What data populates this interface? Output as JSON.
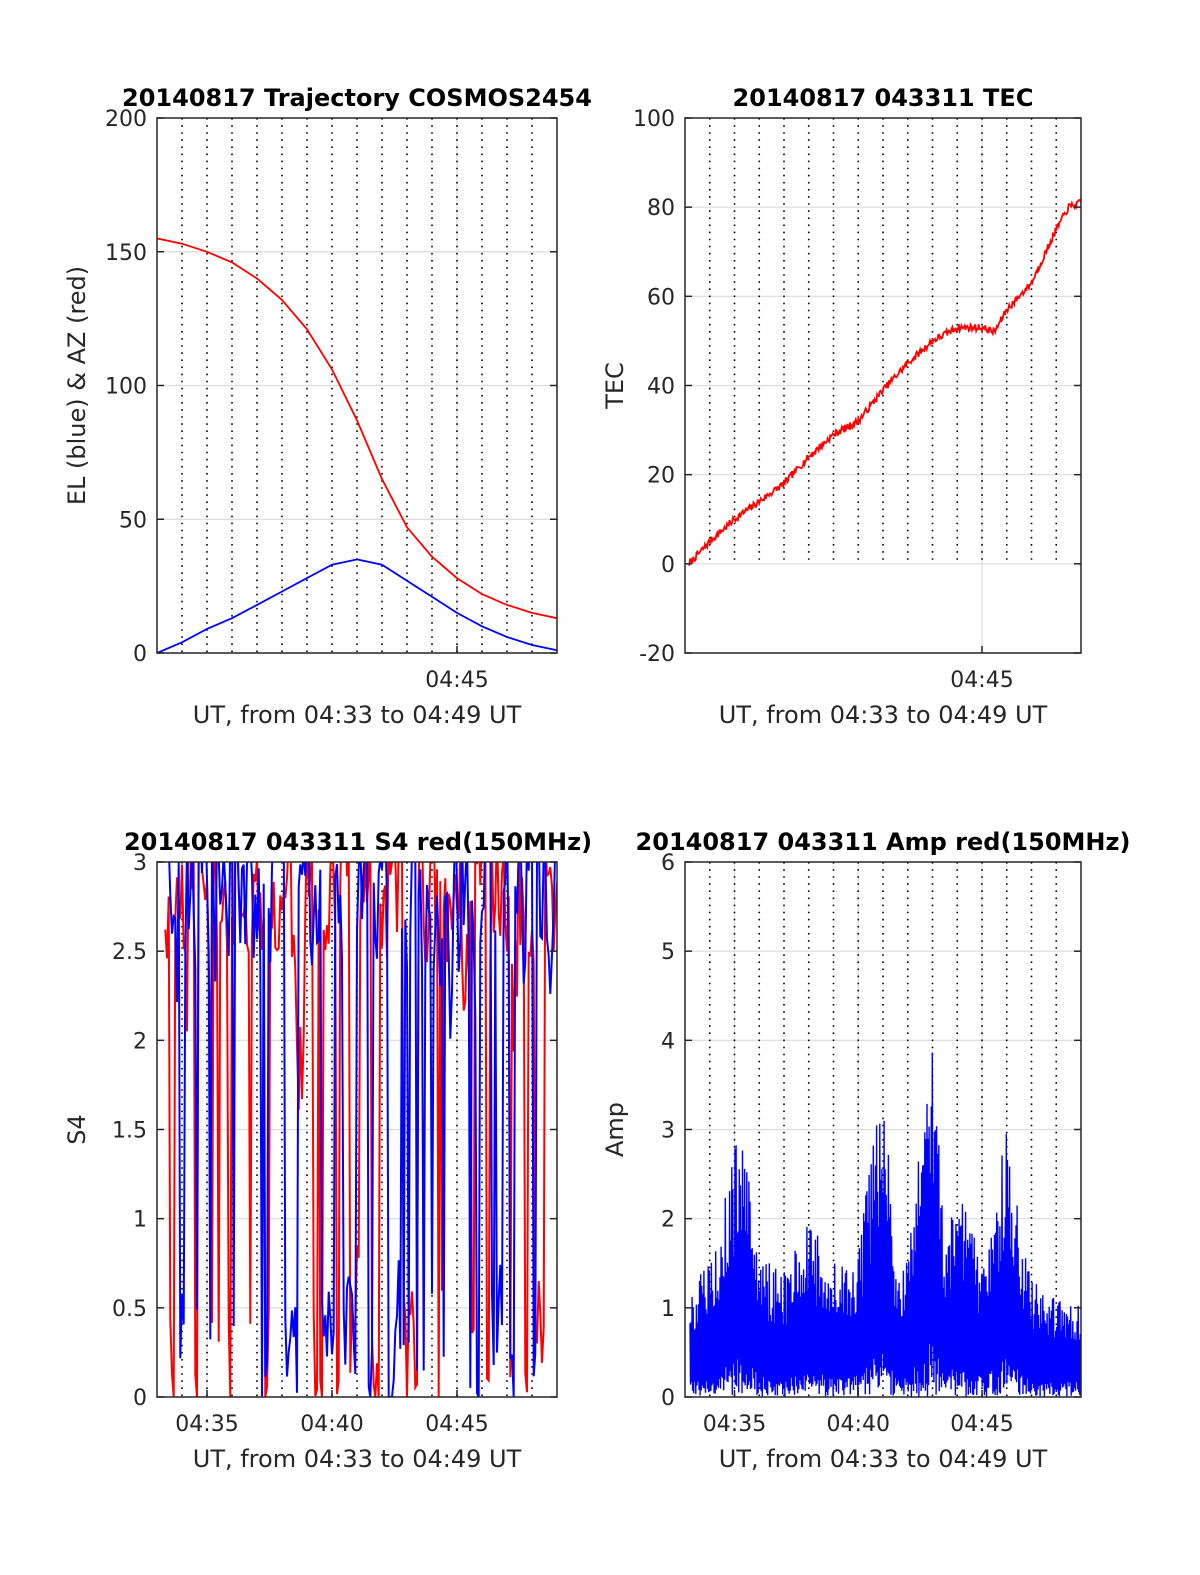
{
  "figure": {
    "colors": {
      "red": "#ff0000",
      "blue": "#0000ff",
      "axis": "#262626",
      "grid": "#dcdcdc"
    }
  },
  "chart_data": [
    {
      "id": "trajectory",
      "type": "line",
      "title": "20140817 Trajectory COSMOS2454",
      "xlabel": "UT, from 04:33 to 04:49 UT",
      "ylabel": "EL (blue) & AZ (red)",
      "xlim": [
        "04:33",
        "04:49"
      ],
      "ylim": [
        0,
        200
      ],
      "yticks": [
        0,
        50,
        100,
        150,
        200
      ],
      "xticks": [
        {
          "t": "04:45",
          "label": "04:45"
        }
      ],
      "dotted_minutes": [
        "04:34",
        "04:35",
        "04:36",
        "04:37",
        "04:38",
        "04:39",
        "04:40",
        "04:41",
        "04:42",
        "04:43",
        "04:44",
        "04:45",
        "04:46",
        "04:47",
        "04:48"
      ],
      "grid": true,
      "series": [
        {
          "color": "red",
          "style": "line",
          "points": [
            [
              "04:33",
              155
            ],
            [
              "04:34",
              153
            ],
            [
              "04:35",
              150
            ],
            [
              "04:36",
              146
            ],
            [
              "04:37",
              140
            ],
            [
              "04:38",
              132
            ],
            [
              "04:39",
              121
            ],
            [
              "04:40",
              106
            ],
            [
              "04:41",
              87
            ],
            [
              "04:42",
              65
            ],
            [
              "04:43",
              47
            ],
            [
              "04:44",
              36
            ],
            [
              "04:45",
              28
            ],
            [
              "04:46",
              22
            ],
            [
              "04:47",
              18
            ],
            [
              "04:48",
              15
            ],
            [
              "04:49",
              13
            ]
          ]
        },
        {
          "color": "blue",
          "style": "line",
          "points": [
            [
              "04:33",
              0
            ],
            [
              "04:34",
              4
            ],
            [
              "04:35",
              9
            ],
            [
              "04:36",
              13
            ],
            [
              "04:37",
              18
            ],
            [
              "04:38",
              23
            ],
            [
              "04:39",
              28
            ],
            [
              "04:40",
              33
            ],
            [
              "04:41",
              35
            ],
            [
              "04:42",
              33
            ],
            [
              "04:43",
              27
            ],
            [
              "04:44",
              21
            ],
            [
              "04:45",
              15
            ],
            [
              "04:46",
              10
            ],
            [
              "04:47",
              6
            ],
            [
              "04:48",
              3
            ],
            [
              "04:49",
              1
            ]
          ]
        }
      ]
    },
    {
      "id": "tec",
      "type": "line",
      "title": "20140817 043311 TEC",
      "xlabel": "UT, from 04:33 to 04:49 UT",
      "ylabel": "TEC",
      "xlim": [
        "04:33",
        "04:49"
      ],
      "ylim": [
        -20,
        100
      ],
      "yticks": [
        -20,
        0,
        20,
        40,
        60,
        80,
        100
      ],
      "xticks": [
        {
          "t": "04:45",
          "label": "04:45"
        }
      ],
      "dotted_minutes": [
        "04:34",
        "04:35",
        "04:36",
        "04:37",
        "04:38",
        "04:39",
        "04:40",
        "04:41",
        "04:42",
        "04:43",
        "04:44",
        "04:45",
        "04:46",
        "04:47",
        "04:48"
      ],
      "dotted_clip_below": 0,
      "grid": true,
      "series": [
        {
          "color": "red",
          "style": "line",
          "points": [
            [
              "04:33:10",
              0
            ],
            [
              "04:33:30",
              2
            ],
            [
              "04:34:00",
              5
            ],
            [
              "04:35:00",
              10
            ],
            [
              "04:36:00",
              14
            ],
            [
              "04:37:00",
              18
            ],
            [
              "04:38:00",
              24
            ],
            [
              "04:39:00",
              29
            ],
            [
              "04:40:00",
              32
            ],
            [
              "04:41:00",
              39
            ],
            [
              "04:42:00",
              45
            ],
            [
              "04:43:00",
              50
            ],
            [
              "04:44:00",
              53
            ],
            [
              "04:45:00",
              53
            ],
            [
              "04:45:30",
              52
            ],
            [
              "04:46:00",
              57
            ],
            [
              "04:47:00",
              63
            ],
            [
              "04:48:00",
              75
            ],
            [
              "04:48:30",
              80
            ],
            [
              "04:49:00",
              81
            ]
          ]
        }
      ]
    },
    {
      "id": "s4",
      "type": "line",
      "title": "20140817 043311 S4 red(150MHz)",
      "xlabel": "UT, from 04:33 to 04:49 UT",
      "ylabel": "S4",
      "xlim": [
        "04:33",
        "04:49"
      ],
      "ylim": [
        0,
        3
      ],
      "yticks": [
        0,
        0.5,
        1,
        1.5,
        2,
        2.5,
        3
      ],
      "ytick_labels": [
        "0",
        "0.5",
        "1",
        "1.5",
        "2",
        "2.5",
        "3"
      ],
      "xticks": [
        {
          "t": "04:35",
          "label": "04:35"
        },
        {
          "t": "04:40",
          "label": "04:40"
        },
        {
          "t": "04:45",
          "label": "04:45"
        }
      ],
      "dotted_minutes": [
        "04:34",
        "04:35",
        "04:36",
        "04:37",
        "04:38",
        "04:39",
        "04:40",
        "04:41",
        "04:42",
        "04:43",
        "04:44",
        "04:45",
        "04:46",
        "04:47",
        "04:48"
      ],
      "grid": true,
      "series": [
        {
          "color": "red",
          "style": "noisy",
          "level_range": [
            0,
            3
          ],
          "seed": 11
        },
        {
          "color": "blue",
          "style": "noisy",
          "level_range": [
            0,
            3
          ],
          "seed": 29
        }
      ]
    },
    {
      "id": "amp",
      "type": "line",
      "title": "20140817 043311 Amp red(150MHz)",
      "xlabel": "UT, from 04:33 to 04:49 UT",
      "ylabel": "Amp",
      "xlim": [
        "04:33",
        "04:49"
      ],
      "ylim": [
        0,
        6
      ],
      "yticks": [
        0,
        1,
        2,
        3,
        4,
        5,
        6
      ],
      "xticks": [
        {
          "t": "04:35",
          "label": "04:35"
        },
        {
          "t": "04:40",
          "label": "04:40"
        },
        {
          "t": "04:45",
          "label": "04:45"
        }
      ],
      "dotted_minutes": [
        "04:34",
        "04:35",
        "04:36",
        "04:37",
        "04:38",
        "04:39",
        "04:40",
        "04:41",
        "04:42",
        "04:43",
        "04:44",
        "04:45",
        "04:46",
        "04:47",
        "04:48"
      ],
      "grid": true,
      "series": [
        {
          "color": "blue",
          "style": "envelope",
          "envelope": [
            [
              "04:33",
              1.2
            ],
            [
              "04:34",
              1.5
            ],
            [
              "04:35",
              2.8
            ],
            [
              "04:35:30",
              3.1
            ],
            [
              "04:36",
              1.6
            ],
            [
              "04:37",
              1.4
            ],
            [
              "04:38",
              2.0
            ],
            [
              "04:39",
              1.5
            ],
            [
              "04:40",
              1.6
            ],
            [
              "04:41",
              3.8
            ],
            [
              "04:41:30",
              1.6
            ],
            [
              "04:42",
              1.5
            ],
            [
              "04:43",
              4.3
            ],
            [
              "04:43:30",
              1.5
            ],
            [
              "04:44",
              2.5
            ],
            [
              "04:45",
              1.5
            ],
            [
              "04:46",
              3.0
            ],
            [
              "04:46:30",
              2.0
            ],
            [
              "04:47",
              1.3
            ],
            [
              "04:48",
              1.2
            ],
            [
              "04:49",
              1.1
            ]
          ]
        }
      ]
    }
  ]
}
